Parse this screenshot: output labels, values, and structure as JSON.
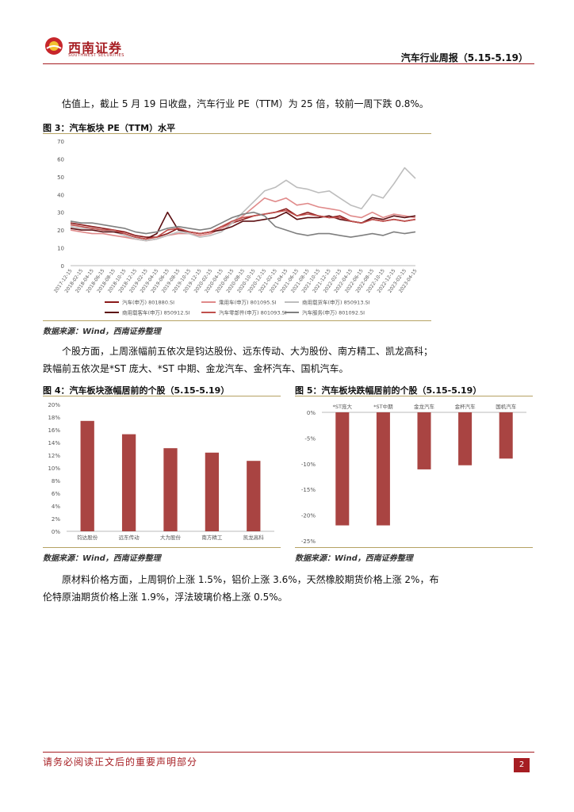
{
  "header": {
    "logo_cn": "西南证券",
    "logo_en": "SOUTHWEST SECURITIES",
    "report_title": "汽车行业周报（5.15-5.19）"
  },
  "body": {
    "para1": "估值上，截止 5 月 19 日收盘，汽车行业 PE（TTM）为 25 倍，较前一周下跌 0.8%。",
    "para2_line1": "个股方面，上周涨幅前五依次是钧达股份、远东传动、大为股份、南方精工、凯龙高科；",
    "para2_line2": "跌幅前五依次是*ST 庞大、*ST 中期、金龙汽车、金杯汽车、国机汽车。",
    "para3_line1": "原材料价格方面，上周铜价上涨 1.5%，铝价上涨 3.6%，天然橡胶期货价格上涨 2%，布",
    "para3_line2": "伦特原油期货价格上涨 1.9%，浮法玻璃价格上涨 0.5%。"
  },
  "figures": {
    "fig3_title": "图 3：汽车板块 PE（TTM）水平",
    "fig4_title": "图 4：汽车板块涨幅居前的个股（5.15-5.19）",
    "fig5_title": "图 5：汽车板块跌幅居前的个股（5.15-5.19）",
    "source": "数据来源：Wind，西南证券整理"
  },
  "chart_data": [
    {
      "type": "line",
      "y_ticks": [
        "0",
        "10",
        "20",
        "30",
        "40",
        "50",
        "60",
        "70"
      ],
      "ylim": [
        0,
        70
      ],
      "x_ticks": [
        "2017-12-15",
        "2018-02-15",
        "2018-04-15",
        "2018-06-15",
        "2018-08-15",
        "2018-10-15",
        "2018-12-15",
        "2019-02-15",
        "2019-04-15",
        "2019-06-15",
        "2019-08-15",
        "2019-10-15",
        "2019-12-15",
        "2020-02-15",
        "2020-04-15",
        "2020-06-15",
        "2020-08-15",
        "2020-10-15",
        "2020-12-15",
        "2021-02-15",
        "2021-04-15",
        "2021-06-15",
        "2021-08-15",
        "2021-10-15",
        "2021-12-15",
        "2022-02-15",
        "2022-04-15",
        "2022-06-15",
        "2022-08-15",
        "2022-10-15",
        "2022-12-15",
        "2023-02-15",
        "2023-04-15"
      ],
      "series": [
        {
          "name": "汽车(申万) 801880.SI",
          "color": "#8b1a1a",
          "values": [
            24,
            23,
            22,
            21,
            20,
            19,
            17,
            16,
            16,
            18,
            21,
            19,
            18,
            19,
            22,
            24,
            26,
            28,
            29,
            30,
            32,
            28,
            30,
            28,
            27,
            28,
            25,
            24,
            26,
            25,
            26,
            25,
            26
          ]
        },
        {
          "name": "乘用车(申万) 801095.SI",
          "color": "#e08a8a",
          "values": [
            20,
            19,
            18,
            18,
            17,
            16,
            15,
            14,
            15,
            17,
            18,
            18,
            17,
            18,
            21,
            24,
            28,
            33,
            38,
            36,
            38,
            34,
            35,
            33,
            32,
            31,
            28,
            27,
            30,
            27,
            29,
            28,
            27
          ]
        },
        {
          "name": "商用载货车(申万) 850913.SI",
          "color": "#bdbdbd",
          "values": [
            22,
            21,
            21,
            20,
            19,
            17,
            15,
            14,
            15,
            17,
            19,
            18,
            16,
            17,
            19,
            24,
            30,
            36,
            42,
            44,
            48,
            44,
            43,
            41,
            42,
            38,
            34,
            32,
            40,
            38,
            46,
            55,
            49
          ]
        },
        {
          "name": "商用载客车(申万) 850912.SI",
          "color": "#5c0f12",
          "values": [
            21,
            20,
            20,
            19,
            19,
            18,
            16,
            15,
            18,
            30,
            20,
            19,
            18,
            19,
            20,
            22,
            25,
            25,
            26,
            27,
            30,
            26,
            27,
            27,
            28,
            26,
            25,
            24,
            27,
            26,
            28,
            27,
            28
          ]
        },
        {
          "name": "汽车零部件(申万) 801093.SI",
          "color": "#c0504d",
          "values": [
            23,
            22,
            21,
            20,
            20,
            18,
            16,
            15,
            16,
            20,
            21,
            19,
            18,
            19,
            22,
            25,
            27,
            28,
            29,
            30,
            31,
            28,
            29,
            28,
            27,
            27,
            25,
            24,
            26,
            25,
            26,
            25,
            26
          ]
        },
        {
          "name": "汽车服务(申万) 801092.SI",
          "color": "#7f7f7f",
          "values": [
            25,
            24,
            24,
            23,
            22,
            21,
            19,
            18,
            19,
            21,
            22,
            21,
            20,
            21,
            24,
            27,
            29,
            30,
            28,
            22,
            20,
            18,
            17,
            18,
            18,
            17,
            16,
            17,
            18,
            17,
            19,
            18,
            19
          ]
        }
      ]
    },
    {
      "type": "bar",
      "categories": [
        "钧达股份",
        "远东传动",
        "大为股份",
        "南方精工",
        "凯龙高科"
      ],
      "values": [
        17.4,
        15.3,
        13.1,
        12.4,
        11.1
      ],
      "y_ticks": [
        "0%",
        "2%",
        "4%",
        "6%",
        "8%",
        "10%",
        "12%",
        "14%",
        "16%",
        "18%",
        "20%"
      ],
      "ylim": [
        0,
        20
      ],
      "color": "#a94442"
    },
    {
      "type": "bar",
      "categories": [
        "*ST庞大",
        "*ST中期",
        "金龙汽车",
        "金杯汽车",
        "国机汽车"
      ],
      "values": [
        -22.0,
        -22.0,
        -11.1,
        -10.3,
        -9.0
      ],
      "y_ticks": [
        "0%",
        "-5%",
        "-10%",
        "-15%",
        "-20%",
        "-25%"
      ],
      "ylim": [
        -25,
        0
      ],
      "color": "#a94442"
    }
  ],
  "footer": {
    "disclaimer": "请务必阅读正文后的重要声明部分",
    "page": "2"
  }
}
